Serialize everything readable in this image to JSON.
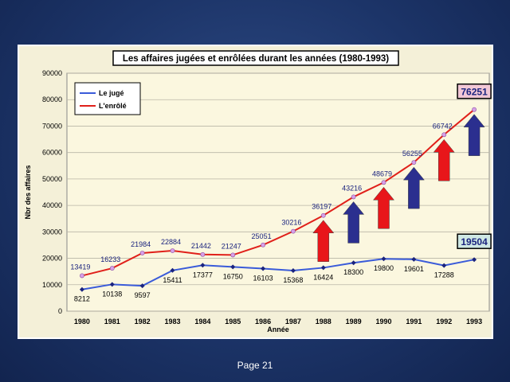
{
  "slide": {
    "footer": "Page 21",
    "background_color": "#1c3468",
    "frame_color": "#f4f0d8"
  },
  "chart_data": {
    "type": "line",
    "title": "Les affaires jugées et enrôlées durant les années (1980-1993)",
    "xlabel": "Année",
    "ylabel": "Nbr des affaires",
    "ylim": [
      0,
      90000
    ],
    "yticks": [
      0,
      10000,
      20000,
      30000,
      40000,
      50000,
      60000,
      70000,
      80000,
      90000
    ],
    "x": [
      "1980",
      "1981",
      "1982",
      "1983",
      "1984",
      "1985",
      "1986",
      "1987",
      "1988",
      "1989",
      "1990",
      "1991",
      "1992",
      "1993"
    ],
    "legend_position": "top-left",
    "grid": true,
    "series": [
      {
        "name": "Le jugé",
        "color": "#3a5bd9",
        "values": [
          8212,
          10138,
          9597,
          15411,
          17377,
          16750,
          16103,
          15368,
          16424,
          18300,
          19800,
          19601,
          17288,
          19504
        ],
        "labels": [
          "8212",
          "10138",
          "9597",
          "15411",
          "17377",
          "16750",
          "16103",
          "15368",
          "16424",
          "18300",
          "19800",
          "19601",
          "17288",
          ""
        ]
      },
      {
        "name": "L'enrôlé",
        "color": "#e0201a",
        "values": [
          13419,
          16233,
          21984,
          22884,
          21442,
          21247,
          25051,
          30216,
          36197,
          43216,
          48679,
          56255,
          66742,
          76251
        ],
        "labels": [
          "13419",
          "16233",
          "21984",
          "22884",
          "21442",
          "21247",
          "25051",
          "30216",
          "36197",
          "43216",
          "48679",
          "56255",
          "66742",
          ""
        ]
      }
    ],
    "callouts": [
      {
        "text": "76251",
        "series": 1,
        "index": 13,
        "background": "#f2c8d6"
      },
      {
        "text": "19504",
        "series": 0,
        "index": 13,
        "background": "#cfe8e4"
      }
    ],
    "arrows": [
      {
        "index": 8,
        "color": "#e8161a"
      },
      {
        "index": 9,
        "color": "#2b2f8f"
      },
      {
        "index": 10,
        "color": "#e8161a"
      },
      {
        "index": 11,
        "color": "#2b2f8f"
      },
      {
        "index": 12,
        "color": "#e8161a"
      },
      {
        "index": 13,
        "color": "#2b2f8f"
      }
    ]
  }
}
